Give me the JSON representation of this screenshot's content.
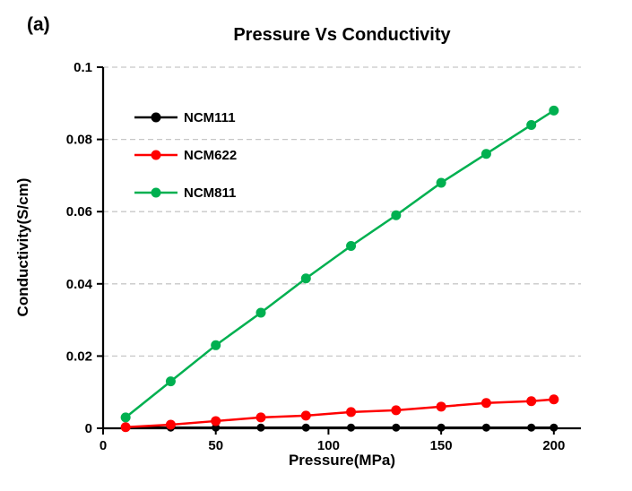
{
  "panel_label": "(a)",
  "chart_data": {
    "type": "line",
    "title": "Pressure Vs Conductivity",
    "xlabel": "Pressure(MPa)",
    "ylabel": "Conductivity(S/cm)",
    "xlim": [
      0,
      212
    ],
    "ylim": [
      0,
      0.1
    ],
    "grid": "horizontal-dashed",
    "grid_color": "#c8c8c8",
    "legend_position": "top-left-inside",
    "x_tick_values": [
      0,
      50,
      100,
      150,
      200
    ],
    "x_tick_labels": [
      "0",
      "50",
      "100",
      "150",
      "200"
    ],
    "y_tick_values": [
      0,
      0.02,
      0.04,
      0.06,
      0.08,
      0.1
    ],
    "y_tick_labels": [
      "0",
      "0.02",
      "0.04",
      "0.06",
      "0.08",
      "0.1"
    ],
    "x": [
      10,
      30,
      50,
      70,
      90,
      110,
      130,
      150,
      170,
      190,
      200
    ],
    "series": [
      {
        "name": "NCM111",
        "color": "#000000",
        "values": [
          0.0002,
          0.0002,
          0.0002,
          0.0002,
          0.0002,
          0.0002,
          0.0002,
          0.0002,
          0.0002,
          0.0002,
          0.0002
        ]
      },
      {
        "name": "NCM622",
        "color": "#ff0000",
        "values": [
          0.0003,
          0.001,
          0.002,
          0.003,
          0.0035,
          0.0045,
          0.005,
          0.006,
          0.007,
          0.0075,
          0.008
        ]
      },
      {
        "name": "NCM811",
        "color": "#00b050",
        "values": [
          0.003,
          0.013,
          0.023,
          0.032,
          0.0415,
          0.0505,
          0.059,
          0.068,
          0.076,
          0.084,
          0.088
        ]
      }
    ]
  }
}
